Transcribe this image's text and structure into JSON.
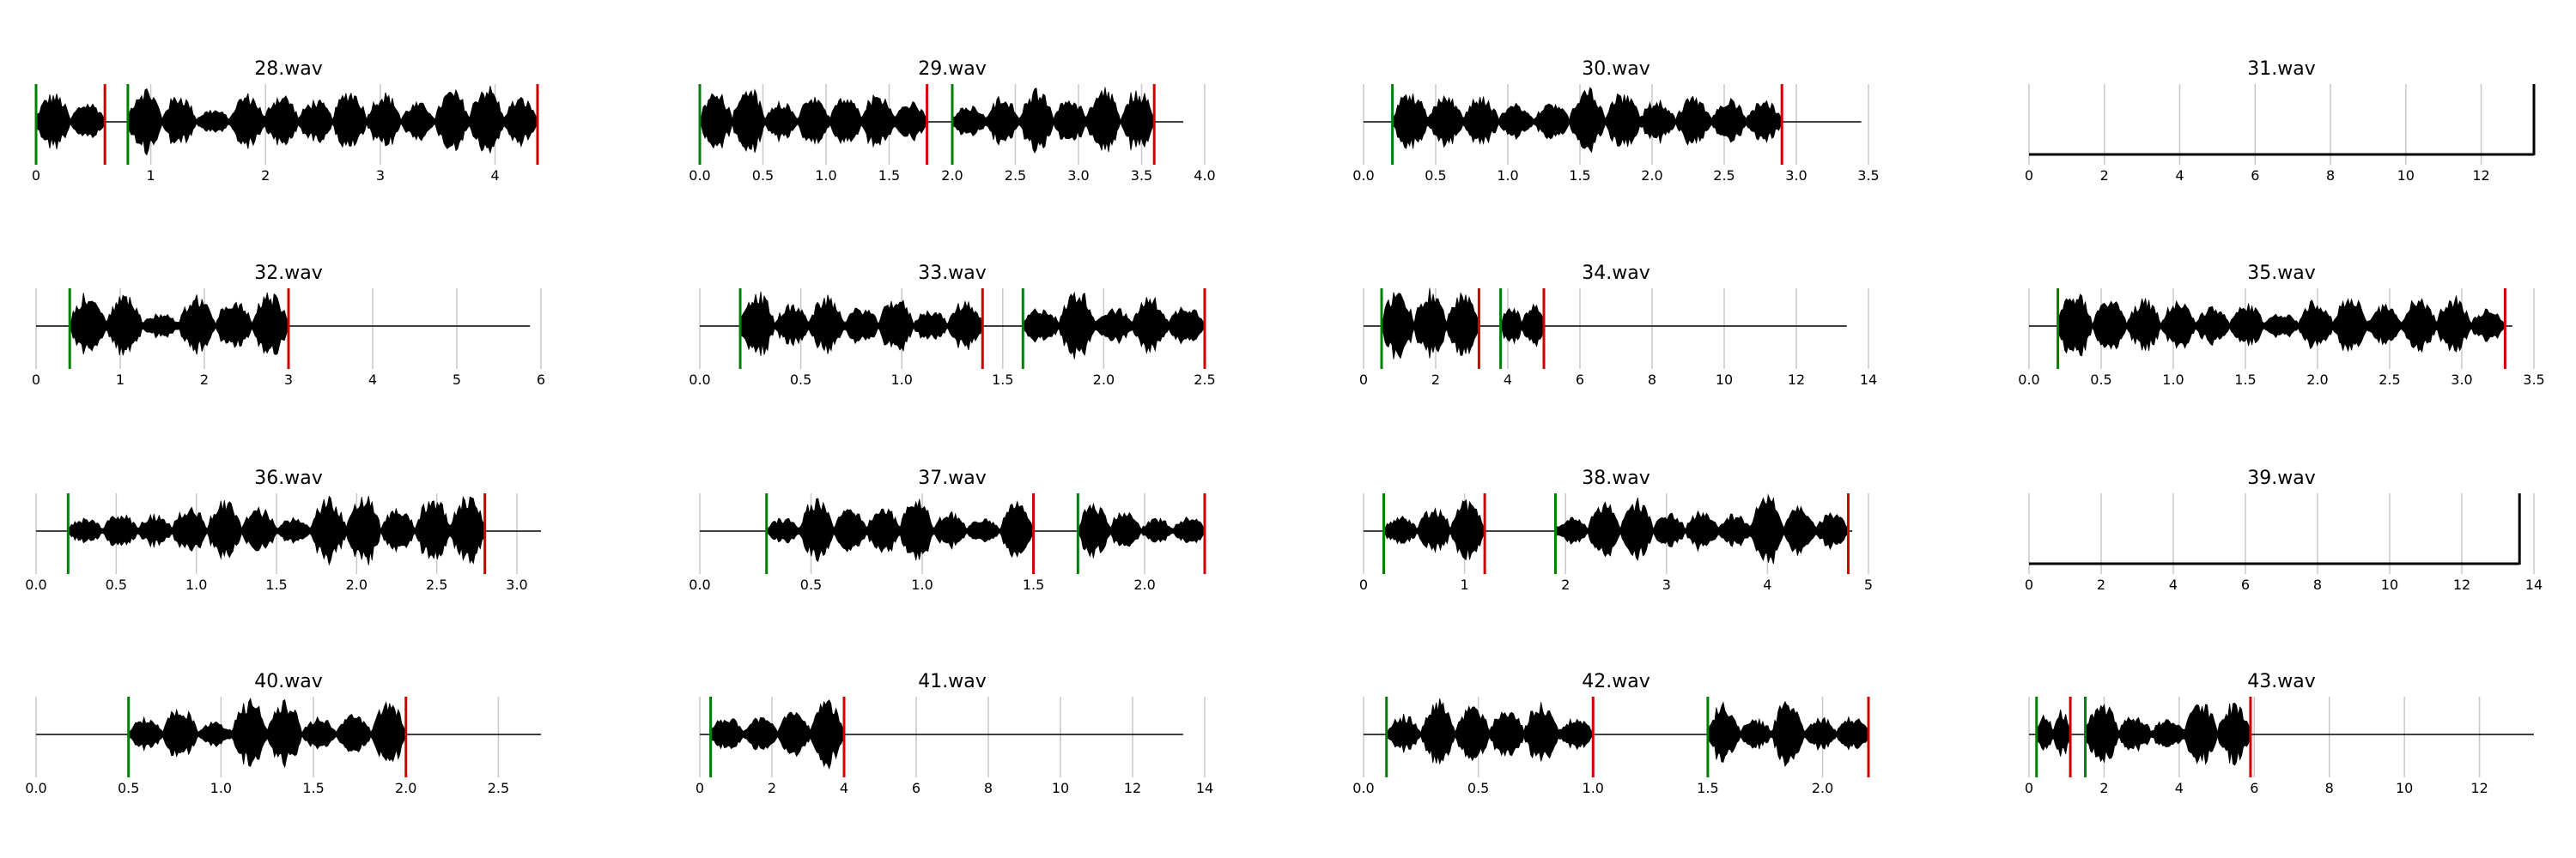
{
  "chart_data": [
    {
      "type": "waveform",
      "title": "28.wav",
      "xlim": [
        0,
        4.4
      ],
      "xticks": [
        0,
        1,
        2,
        3,
        4
      ],
      "duration": 4.37,
      "onsets": [
        0.0,
        0.8
      ],
      "offsets": [
        0.6,
        4.37
      ],
      "onset_color": "#008000",
      "offset_color": "#d00000",
      "grid": true
    },
    {
      "type": "waveform",
      "title": "29.wav",
      "xlim": [
        0,
        4.0
      ],
      "xticks": [
        {
          "value": 0,
          "label": "0.0"
        },
        0.5,
        {
          "value": 1,
          "label": "1.0"
        },
        1.5,
        {
          "value": 2,
          "label": "2.0"
        },
        2.5,
        {
          "value": 3,
          "label": "3.0"
        },
        3.5,
        {
          "value": 4,
          "label": "4.0"
        }
      ],
      "duration": 3.83,
      "onsets": [
        0.0,
        2.0
      ],
      "offsets": [
        1.8,
        3.6
      ],
      "onset_color": "#008000",
      "offset_color": "#d00000",
      "grid": true
    },
    {
      "type": "waveform",
      "title": "30.wav",
      "xlim": [
        0,
        3.5
      ],
      "xticks": [
        {
          "value": 0,
          "label": "0.0"
        },
        0.5,
        {
          "value": 1,
          "label": "1.0"
        },
        1.5,
        {
          "value": 2,
          "label": "2.0"
        },
        2.5,
        {
          "value": 3,
          "label": "3.0"
        },
        3.5
      ],
      "duration": 3.45,
      "onsets": [
        0.2
      ],
      "offsets": [
        2.9
      ],
      "onset_color": "#008000",
      "offset_color": "#d00000",
      "grid": true
    },
    {
      "type": "waveform",
      "title": "31.wav",
      "xlim": [
        0,
        13.4
      ],
      "xticks": [
        0,
        2,
        4,
        6,
        8,
        10,
        12
      ],
      "duration": 13.4,
      "onsets": [],
      "offsets": [],
      "onset_color": "#008000",
      "offset_color": "#d00000",
      "grid": true
    },
    {
      "type": "waveform",
      "title": "32.wav",
      "xlim": [
        0,
        6
      ],
      "xticks": [
        0,
        1,
        2,
        3,
        4,
        5,
        6
      ],
      "duration": 5.87,
      "onsets": [
        0.4
      ],
      "offsets": [
        3.0
      ],
      "onset_color": "#008000",
      "offset_color": "#d00000",
      "grid": true
    },
    {
      "type": "waveform",
      "title": "33.wav",
      "xlim": [
        0,
        2.5
      ],
      "xticks": [
        {
          "value": 0,
          "label": "0.0"
        },
        0.5,
        {
          "value": 1,
          "label": "1.0"
        },
        1.5,
        {
          "value": 2,
          "label": "2.0"
        },
        2.5
      ],
      "duration": 2.5,
      "onsets": [
        0.2,
        1.6
      ],
      "offsets": [
        1.4,
        2.5
      ],
      "onset_color": "#008000",
      "offset_color": "#d00000",
      "grid": true
    },
    {
      "type": "waveform",
      "title": "34.wav",
      "xlim": [
        0,
        14
      ],
      "xticks": [
        0,
        2,
        4,
        6,
        8,
        10,
        12,
        14
      ],
      "duration": 13.4,
      "onsets": [
        0.5,
        3.8
      ],
      "offsets": [
        3.2,
        5.0
      ],
      "onset_color": "#008000",
      "offset_color": "#d00000",
      "grid": true
    },
    {
      "type": "waveform",
      "title": "35.wav",
      "xlim": [
        0,
        3.5
      ],
      "xticks": [
        {
          "value": 0,
          "label": "0.0"
        },
        0.5,
        {
          "value": 1,
          "label": "1.0"
        },
        1.5,
        {
          "value": 2,
          "label": "2.0"
        },
        2.5,
        {
          "value": 3,
          "label": "3.0"
        },
        3.5
      ],
      "duration": 3.35,
      "onsets": [
        0.2
      ],
      "offsets": [
        3.3
      ],
      "onset_color": "#008000",
      "offset_color": "#d00000",
      "grid": true
    },
    {
      "type": "waveform",
      "title": "36.wav",
      "xlim": [
        0,
        3.15
      ],
      "xticks": [
        {
          "value": 0,
          "label": "0.0"
        },
        0.5,
        {
          "value": 1,
          "label": "1.0"
        },
        1.5,
        {
          "value": 2,
          "label": "2.0"
        },
        2.5,
        {
          "value": 3,
          "label": "3.0"
        }
      ],
      "duration": 3.15,
      "onsets": [
        0.2
      ],
      "offsets": [
        2.8
      ],
      "onset_color": "#008000",
      "offset_color": "#d00000",
      "grid": true
    },
    {
      "type": "waveform",
      "title": "37.wav",
      "xlim": [
        0,
        2.27
      ],
      "xticks": [
        {
          "value": 0,
          "label": "0.0"
        },
        0.5,
        {
          "value": 1,
          "label": "1.0"
        },
        1.5,
        {
          "value": 2,
          "label": "2.0"
        }
      ],
      "duration": 2.27,
      "onsets": [
        0.3,
        1.7
      ],
      "offsets": [
        1.5,
        2.27
      ],
      "onset_color": "#008000",
      "offset_color": "#d00000",
      "grid": true
    },
    {
      "type": "waveform",
      "title": "38.wav",
      "xlim": [
        0,
        5
      ],
      "xticks": [
        0,
        1,
        2,
        3,
        4,
        5
      ],
      "duration": 4.84,
      "onsets": [
        0.2,
        1.9
      ],
      "offsets": [
        1.2,
        4.8
      ],
      "onset_color": "#008000",
      "offset_color": "#d00000",
      "grid": true
    },
    {
      "type": "waveform",
      "title": "39.wav",
      "xlim": [
        0,
        14
      ],
      "xticks": [
        0,
        2,
        4,
        6,
        8,
        10,
        12,
        14
      ],
      "duration": 13.6,
      "onsets": [],
      "offsets": [],
      "onset_color": "#008000",
      "offset_color": "#d00000",
      "grid": true
    },
    {
      "type": "waveform",
      "title": "40.wav",
      "xlim": [
        0,
        2.73
      ],
      "xticks": [
        {
          "value": 0,
          "label": "0.0"
        },
        0.5,
        {
          "value": 1,
          "label": "1.0"
        },
        1.5,
        {
          "value": 2,
          "label": "2.0"
        },
        2.5
      ],
      "duration": 2.73,
      "onsets": [
        0.5
      ],
      "offsets": [
        2.0
      ],
      "onset_color": "#008000",
      "offset_color": "#d00000",
      "grid": true
    },
    {
      "type": "waveform",
      "title": "41.wav",
      "xlim": [
        0,
        14
      ],
      "xticks": [
        0,
        2,
        4,
        6,
        8,
        10,
        12,
        14
      ],
      "duration": 13.4,
      "onsets": [
        0.3
      ],
      "offsets": [
        4.0
      ],
      "onset_color": "#008000",
      "offset_color": "#d00000",
      "grid": true
    },
    {
      "type": "waveform",
      "title": "42.wav",
      "xlim": [
        0,
        2.2
      ],
      "xticks": [
        {
          "value": 0,
          "label": "0.0"
        },
        0.5,
        {
          "value": 1,
          "label": "1.0"
        },
        1.5,
        {
          "value": 2,
          "label": "2.0"
        }
      ],
      "duration": 2.2,
      "onsets": [
        0.1,
        1.5
      ],
      "offsets": [
        1.0,
        2.2
      ],
      "onset_color": "#008000",
      "offset_color": "#d00000",
      "grid": true
    },
    {
      "type": "waveform",
      "title": "43.wav",
      "xlim": [
        0,
        13.45
      ],
      "xticks": [
        0,
        2,
        4,
        6,
        8,
        10,
        12
      ],
      "duration": 13.45,
      "onsets": [
        0.2,
        1.5
      ],
      "offsets": [
        1.1,
        5.9
      ],
      "onset_color": "#008000",
      "offset_color": "#d00000",
      "grid": true
    }
  ]
}
